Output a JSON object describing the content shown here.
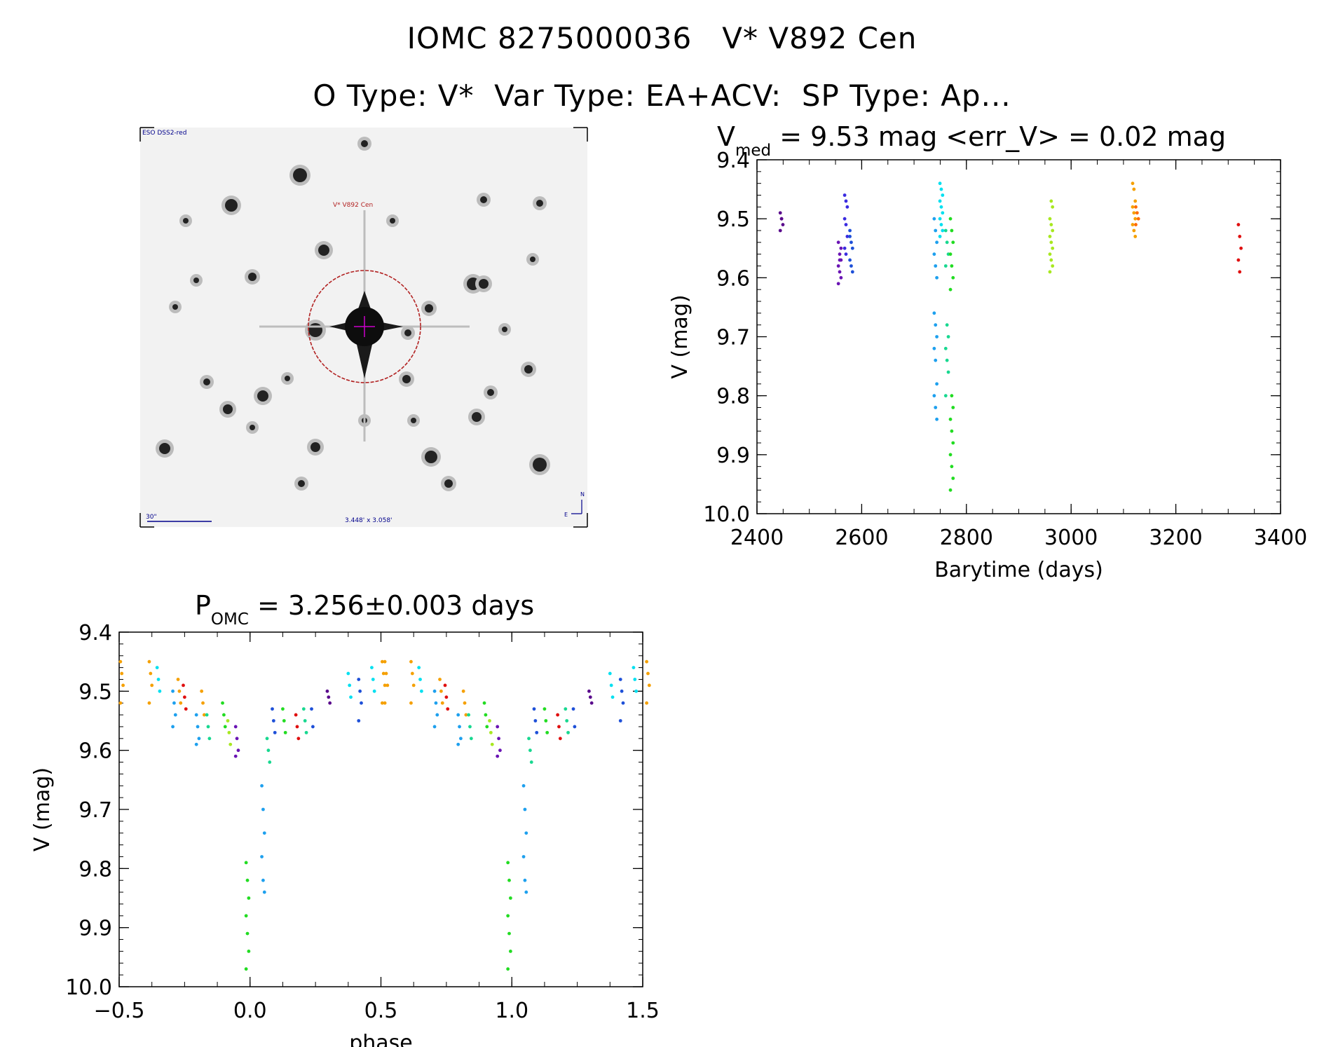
{
  "header": {
    "line1": "IOMC 8275000036   V* V892 Cen",
    "line2": "O Type: V*  Var Type: EA+ACV:  SP Type: Ap..."
  },
  "image_panel": {
    "survey_label": "ESO DSS2-red",
    "object_label": "V* V892 Cen",
    "scale_label": "30\"",
    "size_label": "3.448' x 3.058'",
    "compass_n": "N",
    "compass_e": "E"
  },
  "colors": {
    "circle": "#b22222",
    "cross": "#cc00cc",
    "label_blue": "#00008b",
    "label_red": "#b22222"
  },
  "chart_data": [
    {
      "type": "scatter",
      "id": "lightcurve",
      "title_main": "V",
      "title_sub": "med",
      "title_rest": " = 9.53 mag <err_V> = 0.02 mag",
      "xlabel": "Barytime (days)",
      "ylabel": "V (mag)",
      "xlim": [
        2400,
        3400
      ],
      "ylim": [
        10.0,
        9.4
      ],
      "xticks": [
        2400,
        2600,
        2800,
        3000,
        3200,
        3400
      ],
      "xtick_labels": [
        "2400",
        "2600",
        "2800",
        "3000",
        "3200",
        "3400"
      ],
      "yticks": [
        9.4,
        9.5,
        9.6,
        9.7,
        9.8,
        9.9,
        10.0
      ],
      "ytick_labels": [
        "9.4",
        "9.5",
        "9.6",
        "9.7",
        "9.8",
        "9.9",
        "10.0"
      ],
      "groups": [
        {
          "color": "#5a0a8c",
          "x": 2447,
          "points": [
            9.49,
            9.5,
            9.51,
            9.52,
            9.5
          ]
        },
        {
          "color": "#6a14b4",
          "x": 2558,
          "points": [
            9.54,
            9.56,
            9.57,
            9.58,
            9.59,
            9.6,
            9.61,
            9.57,
            9.55
          ]
        },
        {
          "color": "#3a2be0",
          "x": 2570,
          "points": [
            9.46,
            9.47,
            9.48,
            9.5,
            9.51,
            9.53,
            9.55,
            9.56
          ]
        },
        {
          "color": "#1e50d8",
          "x": 2580,
          "points": [
            9.52,
            9.54,
            9.55,
            9.57,
            9.58,
            9.59,
            9.53
          ]
        },
        {
          "color": "#1ea0ee",
          "x": 2741,
          "points": [
            9.5,
            9.52,
            9.54,
            9.56,
            9.58,
            9.6,
            9.66,
            9.68,
            9.7,
            9.72,
            9.74,
            9.78,
            9.8,
            9.82,
            9.84
          ]
        },
        {
          "color": "#00e0f0",
          "x": 2752,
          "points": [
            9.44,
            9.45,
            9.46,
            9.47,
            9.48,
            9.49,
            9.5,
            9.51,
            9.52,
            9.53
          ]
        },
        {
          "color": "#18d890",
          "x": 2763,
          "points": [
            9.52,
            9.54,
            9.56,
            9.58,
            9.68,
            9.7,
            9.72,
            9.74,
            9.76,
            9.8
          ]
        },
        {
          "color": "#22dc22",
          "x": 2772,
          "points": [
            9.5,
            9.52,
            9.54,
            9.56,
            9.58,
            9.6,
            9.62,
            9.8,
            9.82,
            9.84,
            9.86,
            9.88,
            9.9,
            9.92,
            9.94,
            9.96
          ]
        },
        {
          "color": "#a8e820",
          "x": 2962,
          "points": [
            9.5,
            9.51,
            9.52,
            9.53,
            9.54,
            9.55,
            9.56,
            9.57,
            9.58,
            9.59,
            9.47,
            9.48
          ]
        },
        {
          "color": "#f5a000",
          "x": 3120,
          "points": [
            9.44,
            9.45,
            9.47,
            9.48,
            9.49,
            9.5,
            9.51,
            9.52,
            9.53
          ]
        },
        {
          "color": "#ff6a00",
          "x": 3126,
          "points": [
            9.48,
            9.49,
            9.5,
            9.51
          ]
        },
        {
          "color": "#e01010",
          "x": 3322,
          "points": [
            9.51,
            9.53,
            9.55,
            9.57,
            9.59
          ]
        }
      ]
    },
    {
      "type": "scatter",
      "id": "phasecurve",
      "title_main": "P",
      "title_sub": "OMC",
      "title_rest": " = 3.256±0.003 days",
      "xlabel": "phase",
      "ylabel": "V (mag)",
      "xlim": [
        -0.5,
        1.5
      ],
      "ylim": [
        10.0,
        9.4
      ],
      "xticks": [
        -0.5,
        0.0,
        0.5,
        1.0,
        1.5
      ],
      "xtick_labels": [
        "−0.5",
        "0.0",
        "0.5",
        "1.0",
        "1.5"
      ],
      "yticks": [
        9.4,
        9.5,
        9.6,
        9.7,
        9.8,
        9.9,
        10.0
      ],
      "ytick_labels": [
        "9.4",
        "9.5",
        "9.6",
        "9.7",
        "9.8",
        "9.9",
        "10.0"
      ],
      "period_repeat": 1.0,
      "groups": [
        {
          "color": "#f5a000",
          "x": -0.49,
          "points": [
            9.45,
            9.47,
            9.49,
            9.52
          ]
        },
        {
          "color": "#f5a000",
          "x": -0.38,
          "points": [
            9.45,
            9.47,
            9.49,
            9.52
          ]
        },
        {
          "color": "#00e0f0",
          "x": -0.35,
          "points": [
            9.46,
            9.48,
            9.5
          ]
        },
        {
          "color": "#1ea0ee",
          "x": -0.29,
          "points": [
            9.5,
            9.52,
            9.54,
            9.56
          ]
        },
        {
          "color": "#f5a000",
          "x": -0.27,
          "points": [
            9.48,
            9.5,
            9.52
          ]
        },
        {
          "color": "#e01010",
          "x": -0.25,
          "points": [
            9.49,
            9.51,
            9.53
          ]
        },
        {
          "color": "#1ea0ee",
          "x": -0.2,
          "points": [
            9.54,
            9.56,
            9.58,
            9.59
          ]
        },
        {
          "color": "#f5a000",
          "x": -0.18,
          "points": [
            9.5,
            9.52,
            9.54
          ]
        },
        {
          "color": "#18d890",
          "x": -0.16,
          "points": [
            9.54,
            9.56,
            9.58
          ]
        },
        {
          "color": "#22dc22",
          "x": -0.1,
          "points": [
            9.52,
            9.54,
            9.56
          ]
        },
        {
          "color": "#a8e820",
          "x": -0.08,
          "points": [
            9.55,
            9.57,
            9.59
          ]
        },
        {
          "color": "#6a14b4",
          "x": -0.05,
          "points": [
            9.56,
            9.58,
            9.6,
            9.61
          ]
        },
        {
          "color": "#22dc22",
          "x": -0.01,
          "points": [
            9.79,
            9.82,
            9.85,
            9.88,
            9.91,
            9.94,
            9.97
          ]
        },
        {
          "color": "#1ea0ee",
          "x": 0.05,
          "points": [
            9.66,
            9.7,
            9.74,
            9.78,
            9.82,
            9.84
          ]
        },
        {
          "color": "#18d890",
          "x": 0.07,
          "points": [
            9.58,
            9.6,
            9.62
          ]
        },
        {
          "color": "#1e50d8",
          "x": 0.09,
          "points": [
            9.53,
            9.55,
            9.57
          ]
        },
        {
          "color": "#22dc22",
          "x": 0.13,
          "points": [
            9.53,
            9.55,
            9.57
          ]
        },
        {
          "color": "#e01010",
          "x": 0.18,
          "points": [
            9.54,
            9.56,
            9.58
          ]
        },
        {
          "color": "#18d890",
          "x": 0.21,
          "points": [
            9.53,
            9.55,
            9.57
          ]
        },
        {
          "color": "#1e50d8",
          "x": 0.24,
          "points": [
            9.53,
            9.56
          ]
        },
        {
          "color": "#5a0a8c",
          "x": 0.3,
          "points": [
            9.5,
            9.51,
            9.52
          ]
        },
        {
          "color": "#00e0f0",
          "x": 0.38,
          "points": [
            9.47,
            9.49,
            9.51
          ]
        },
        {
          "color": "#1e50d8",
          "x": 0.42,
          "points": [
            9.48,
            9.5,
            9.52,
            9.55
          ]
        },
        {
          "color": "#00e0f0",
          "x": 0.47,
          "points": [
            9.46,
            9.48,
            9.5
          ]
        },
        {
          "color": "#f5a000",
          "x": 0.52,
          "points": [
            9.45,
            9.47,
            9.49,
            9.52
          ]
        }
      ]
    }
  ]
}
